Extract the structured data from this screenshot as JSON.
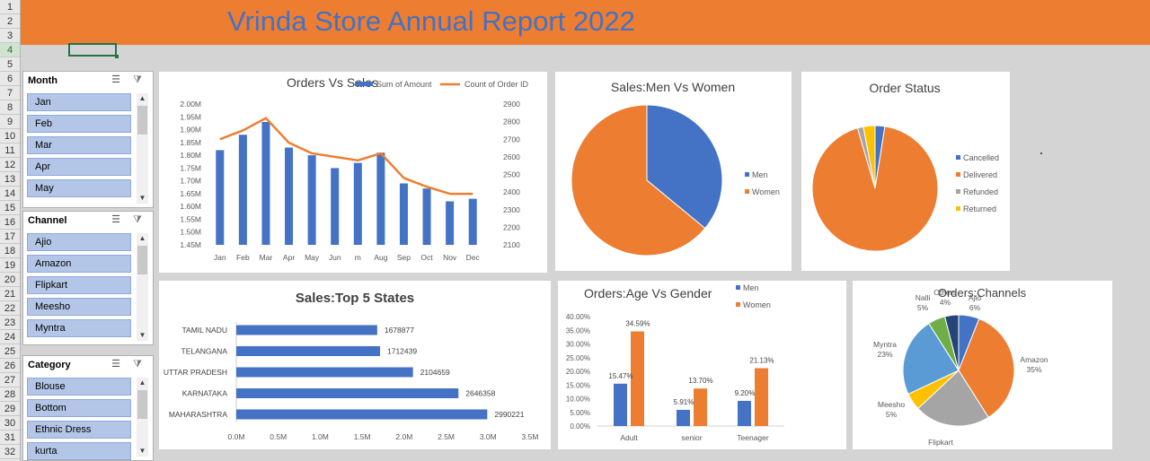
{
  "sheet": {
    "row_numbers": [
      "1",
      "2",
      "3",
      "4",
      "5",
      "6",
      "7",
      "8",
      "9",
      "10",
      "11",
      "12",
      "13",
      "14",
      "15",
      "16",
      "17",
      "18",
      "19",
      "20",
      "21",
      "22",
      "23",
      "24",
      "25",
      "26",
      "27",
      "28",
      "29",
      "30",
      "31",
      "32"
    ],
    "selected_row": "4"
  },
  "banner": {
    "title": "Vrinda Store Annual Report 2022"
  },
  "slicers": [
    {
      "title": "Month",
      "items": [
        "Jan",
        "Feb",
        "Mar",
        "Apr",
        "May"
      ]
    },
    {
      "title": "Channel",
      "items": [
        "Ajio",
        "Amazon",
        "Flipkart",
        "Meesho",
        "Myntra"
      ]
    },
    {
      "title": "Category",
      "items": [
        "Blouse",
        "Bottom",
        "Ethnic Dress",
        "kurta"
      ]
    }
  ],
  "slicer_icons": {
    "multi_select": "multi-select-icon",
    "clear_filter": "clear-filter-icon"
  },
  "colors": {
    "blue": "#4472c4",
    "orange": "#ed7d31",
    "gray": "#a5a5a5",
    "yellow": "#ffc000",
    "lightblue": "#5b9bd5",
    "green": "#70ad47",
    "navy": "#264478",
    "header": "#ed7d31"
  },
  "chart_data": [
    {
      "id": "orders_vs_sales",
      "type": "bar",
      "title": "Orders Vs  Sales",
      "categories": [
        "Jan",
        "Feb",
        "Mar",
        "Apr",
        "May",
        "Jun",
        "m",
        "Aug",
        "Sep",
        "Oct",
        "Nov",
        "Dec"
      ],
      "series": [
        {
          "name": "Sum of Amount",
          "type": "bar",
          "axis": "left",
          "values": [
            1.82,
            1.88,
            1.93,
            1.83,
            1.8,
            1.75,
            1.77,
            1.81,
            1.69,
            1.67,
            1.62,
            1.63
          ]
        },
        {
          "name": "Count of Order ID",
          "type": "line",
          "axis": "right",
          "values": [
            2700,
            2750,
            2820,
            2680,
            2620,
            2600,
            2580,
            2620,
            2480,
            2430,
            2390,
            2390
          ]
        }
      ],
      "y_left": {
        "ylim": [
          1.45,
          2.0
        ],
        "ticks": [
          "1.45M",
          "1.50M",
          "1.55M",
          "1.60M",
          "1.65M",
          "1.70M",
          "1.75M",
          "1.80M",
          "1.85M",
          "1.90M",
          "1.95M",
          "2.00M"
        ]
      },
      "y_right": {
        "ylim": [
          2100,
          2900
        ],
        "ticks": [
          "2100",
          "2200",
          "2300",
          "2400",
          "2500",
          "2600",
          "2700",
          "2800",
          "2900"
        ]
      },
      "legend": "top"
    },
    {
      "id": "sales_men_women",
      "type": "pie",
      "title": "Sales:Men Vs Women",
      "labels": [
        "Men",
        "Women"
      ],
      "values": [
        36,
        64
      ],
      "legend": "right"
    },
    {
      "id": "order_status",
      "type": "pie",
      "title": "Order Status",
      "labels": [
        "Cancelled",
        "Delivered",
        "Refunded",
        "Returned"
      ],
      "values": [
        2.5,
        93,
        1.5,
        3
      ],
      "legend": "right"
    },
    {
      "id": "top5_states",
      "type": "bar",
      "orientation": "horizontal",
      "title": "Sales:Top 5 States",
      "categories": [
        "TAMIL NADU",
        "TELANGANA",
        "UTTAR PRADESH",
        "KARNATAKA",
        "MAHARASHTRA"
      ],
      "values": [
        1678877,
        1712439,
        2104659,
        2646358,
        2990221
      ],
      "data_labels": [
        "1678877",
        "1712439",
        "2104659",
        "2646358",
        "2990221"
      ],
      "xlim": [
        0,
        3500000
      ],
      "x_ticks": [
        "0.0M",
        "0.5M",
        "1.0M",
        "1.5M",
        "2.0M",
        "2.5M",
        "3.0M",
        "3.5M"
      ]
    },
    {
      "id": "age_vs_gender",
      "type": "bar",
      "title": "Orders:Age Vs Gender",
      "categories": [
        "Adult",
        "senior",
        "Teenager"
      ],
      "series": [
        {
          "name": "Men",
          "values": [
            15.47,
            5.91,
            9.2
          ],
          "labels": [
            "15.47%",
            "5.91%",
            "9.20%"
          ]
        },
        {
          "name": "Women",
          "values": [
            34.59,
            13.7,
            21.13
          ],
          "labels": [
            "34.59%",
            "13.70%",
            "21.13%"
          ]
        }
      ],
      "ylim": [
        0,
        40
      ],
      "y_ticks": [
        "0.00%",
        "5.00%",
        "10.00%",
        "15.00%",
        "20.00%",
        "25.00%",
        "30.00%",
        "35.00%",
        "40.00%"
      ],
      "legend": "top-right"
    },
    {
      "id": "orders_channels",
      "type": "pie",
      "title": "Orders:Channels",
      "labels": [
        "Ajio",
        "Amazon",
        "Flipkart",
        "Meesho",
        "Myntra",
        "Nalli",
        "Others"
      ],
      "values": [
        6,
        35,
        22,
        5,
        23,
        5,
        4
      ],
      "data_labels": [
        "6%",
        "35%",
        "22%",
        "5%",
        "23%",
        "5%",
        "4%"
      ]
    }
  ]
}
